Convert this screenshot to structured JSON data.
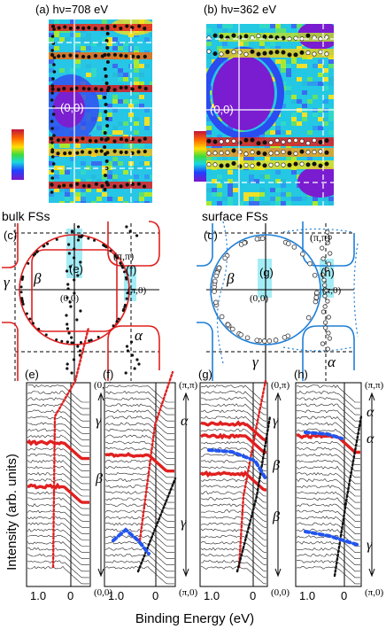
{
  "panels": {
    "a": {
      "label": "(a) hν=708 eV",
      "center": "(0,0)"
    },
    "b": {
      "label": "(b) hν=362 eV",
      "center": "(0,0)"
    },
    "c": {
      "label": "(c)",
      "header": "bulk FSs",
      "labels": [
        "(π,π)",
        "(0,0)",
        "(π,0)",
        "γ",
        "β",
        "α",
        "(e)",
        "(f)"
      ]
    },
    "d": {
      "label": "(d)",
      "header": "surface FSs",
      "labels": [
        "(π,π)",
        "(0,0)",
        "(π,0)",
        "β",
        "γ",
        "α",
        "(g)",
        "(h)"
      ]
    },
    "e": {
      "label": "(e)",
      "top": "(0,π)",
      "bottom": "(0,0)",
      "bands": [
        "γ",
        "β"
      ]
    },
    "f": {
      "label": "(f)",
      "top": "(π,π)",
      "bottom": "(π,0)",
      "bands": [
        "α",
        "γ"
      ]
    },
    "g": {
      "label": "(g)",
      "top": "(0,π)",
      "bottom": "(0,0)",
      "bands": [
        "γ",
        "β",
        "β"
      ]
    },
    "h": {
      "label": "(h)",
      "top": "(π,π)",
      "bottom": "(π,0)",
      "bands": [
        "α",
        "α",
        "γ"
      ]
    }
  },
  "axes": {
    "ylabel": "Intensity (arb. units)",
    "xlabel": "Binding Energy (eV)",
    "ticks": [
      "1.0",
      "0"
    ]
  },
  "colors": {
    "fs_line": "#e02020",
    "surface_line": "#1e7fd8",
    "cut_band": "#6fe0f0",
    "dot_red": "#e02020",
    "dot_blue": "#2255ee"
  }
}
